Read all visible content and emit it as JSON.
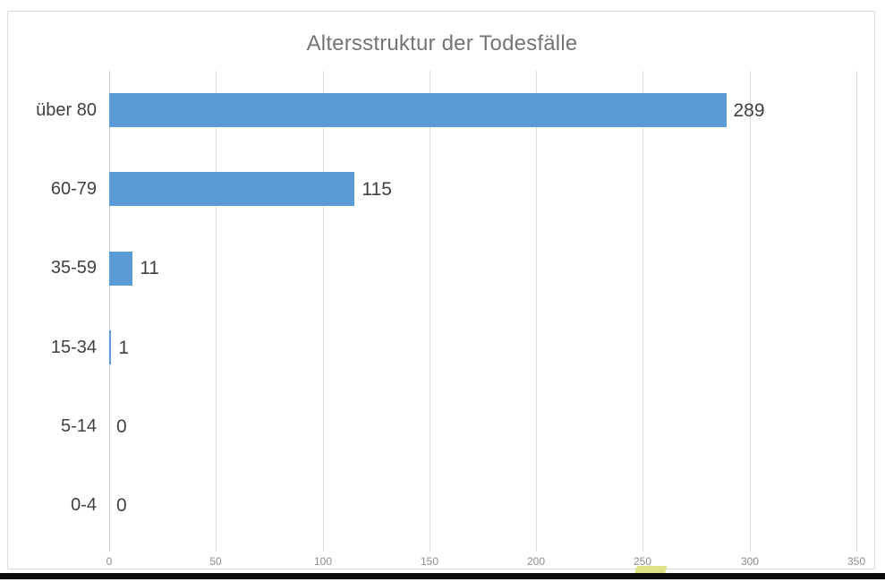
{
  "chart_data": {
    "type": "bar",
    "orientation": "horizontal",
    "title": "Altersstruktur der Todesfälle",
    "categories": [
      "über 80",
      "60-79",
      "35-59",
      "15-34",
      "5-14",
      "0-4"
    ],
    "values": [
      289,
      115,
      11,
      1,
      0,
      0
    ],
    "value_labels": [
      "289",
      "115",
      "11",
      "1",
      "0",
      "0"
    ],
    "xlabel": "",
    "ylabel": "",
    "xlim": [
      0,
      350
    ],
    "x_ticks": [
      0,
      50,
      100,
      150,
      200,
      250,
      300,
      350
    ],
    "x_tick_labels": [
      "0",
      "50",
      "100",
      "150",
      "200",
      "250",
      "300",
      "350"
    ],
    "grid": true,
    "legend": false,
    "colors": {
      "bar": "#5B9BD5",
      "title": "#757575",
      "labels": "#404040",
      "ticks": "#8C8C8C",
      "gridline": "#D9D9D9",
      "frame_border": "#D9D9D9",
      "bottom_bar": "#0A0A0A",
      "highlight": "#DCE487"
    }
  }
}
